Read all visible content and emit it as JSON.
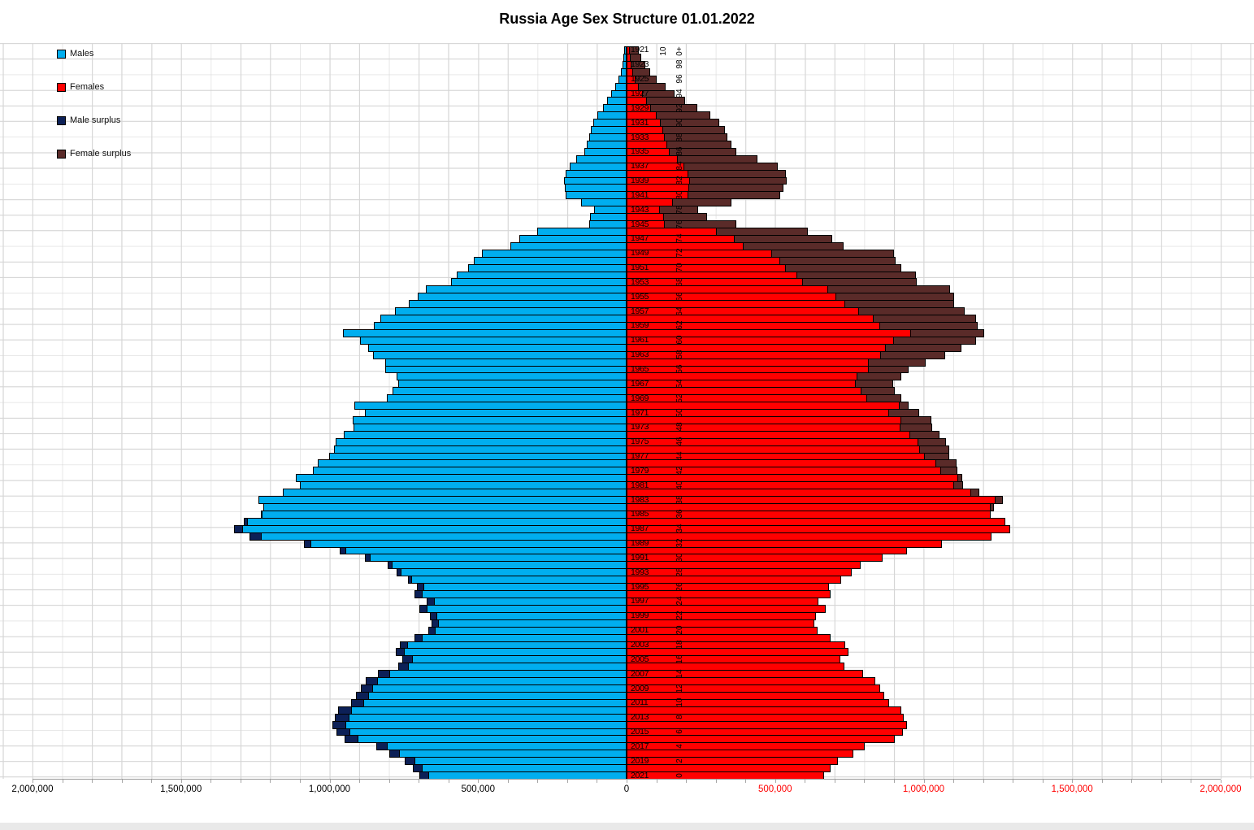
{
  "title": "Russia Age Sex Structure 01.01.2022",
  "legend": {
    "items": [
      {
        "key": "males",
        "label": "Males",
        "color": "#00AEEF"
      },
      {
        "key": "females",
        "label": "Females",
        "color": "#FF0000"
      },
      {
        "key": "male-surplus",
        "label": "Male surplus",
        "color": "#0C2057"
      },
      {
        "key": "female-surplus",
        "label": "Female surplus",
        "color": "#5A2B29"
      }
    ]
  },
  "axis": {
    "zero_label": "0",
    "left_tick_labels": [
      "2,000,000",
      "1,500,000",
      "1,000,000",
      "500,000"
    ],
    "right_tick_labels": [
      "500,000",
      "1,000,000",
      "1,500,000",
      "2,000,000"
    ],
    "left_label_color": "#000000",
    "right_label_color": "#FF0000",
    "max_value": 2000000,
    "major_tick_interval": 500000,
    "minor_gridline_interval": 100000
  },
  "center_labels": {
    "year_top": 1921,
    "year_bottom": 2021,
    "year_step_shown": 2,
    "top_age_label": "100+",
    "top_age_label_wrap": [
      "10",
      "0+"
    ],
    "bottom_age_label": "0",
    "age_step_shown": 2
  },
  "chart_data": {
    "type": "bar",
    "subtype": "population-pyramid",
    "title": "Russia Age Sex Structure 01.01.2022",
    "orientation": "horizontal",
    "x_axis": {
      "range": [
        -2000000,
        2000000
      ],
      "tick_interval": 500000,
      "gridlines": true
    },
    "note": "Left side = males (birth-year rows, age = 2021 - year). Bar colors: matched portion blue/red; male surplus = max(0, males-females) in dark navy at left tip; female surplus = max(0, females-males) in dark maroon at right tip. Values are persons, estimated from chart.",
    "years": [
      1921,
      1922,
      1923,
      1924,
      1925,
      1926,
      1927,
      1928,
      1929,
      1930,
      1931,
      1932,
      1933,
      1934,
      1935,
      1936,
      1937,
      1938,
      1939,
      1940,
      1941,
      1942,
      1943,
      1944,
      1945,
      1946,
      1947,
      1948,
      1949,
      1950,
      1951,
      1952,
      1953,
      1954,
      1955,
      1956,
      1957,
      1958,
      1959,
      1960,
      1961,
      1962,
      1963,
      1964,
      1965,
      1966,
      1967,
      1968,
      1969,
      1970,
      1971,
      1972,
      1973,
      1974,
      1975,
      1976,
      1977,
      1978,
      1979,
      1980,
      1981,
      1982,
      1983,
      1984,
      1985,
      1986,
      1987,
      1988,
      1989,
      1990,
      1991,
      1992,
      1993,
      1994,
      1995,
      1996,
      1997,
      1998,
      1999,
      2000,
      2001,
      2002,
      2003,
      2004,
      2005,
      2006,
      2007,
      2008,
      2009,
      2010,
      2011,
      2012,
      2013,
      2014,
      2015,
      2016,
      2017,
      2018,
      2019,
      2020,
      2021
    ],
    "series": [
      {
        "name": "Males",
        "color": "#00AEEF",
        "values": [
          8000,
          11000,
          14000,
          18000,
          26000,
          37000,
          51000,
          65000,
          79000,
          99000,
          111000,
          121000,
          126000,
          133000,
          141000,
          170000,
          192000,
          206000,
          212000,
          209000,
          206000,
          152000,
          110000,
          124000,
          126000,
          300000,
          360000,
          390000,
          488000,
          514000,
          534000,
          572000,
          591000,
          676000,
          704000,
          732000,
          780000,
          828000,
          852000,
          954000,
          897000,
          870000,
          853000,
          813000,
          812000,
          774000,
          769000,
          788000,
          807000,
          917000,
          881000,
          922000,
          919000,
          952000,
          979000,
          985000,
          1001000,
          1040000,
          1056000,
          1113000,
          1100000,
          1157000,
          1239000,
          1223000,
          1232000,
          1290000,
          1322000,
          1270000,
          1085000,
          965000,
          880000,
          805000,
          773000,
          737000,
          707000,
          713000,
          672000,
          697000,
          662000,
          657000,
          668000,
          713000,
          764000,
          777000,
          756000,
          770000,
          837000,
          879000,
          896000,
          911000,
          928000,
          970000,
          981000,
          991000,
          977000,
          949000,
          843000,
          800000,
          747000,
          720000,
          699000
        ]
      },
      {
        "name": "Females",
        "color": "#FF0000",
        "values": [
          40000,
          50000,
          62000,
          80000,
          102000,
          130000,
          162000,
          198000,
          238000,
          282000,
          312000,
          330000,
          340000,
          352000,
          370000,
          440000,
          508000,
          535000,
          540000,
          528000,
          518000,
          352000,
          240000,
          272000,
          370000,
          610000,
          692000,
          730000,
          900000,
          905000,
          925000,
          975000,
          977000,
          1088000,
          1102000,
          1103000,
          1138000,
          1176000,
          1182000,
          1204000,
          1176000,
          1127000,
          1073000,
          1007000,
          950000,
          925000,
          898000,
          903000,
          925000,
          949000,
          985000,
          1026000,
          1029000,
          1053000,
          1075000,
          1086000,
          1086000,
          1111000,
          1113000,
          1130000,
          1133000,
          1187000,
          1267000,
          1237000,
          1225000,
          1275000,
          1292000,
          1228000,
          1062000,
          945000,
          862000,
          788000,
          758000,
          722000,
          680000,
          686000,
          646000,
          670000,
          637000,
          632000,
          642000,
          686000,
          735000,
          747000,
          720000,
          733000,
          797000,
          837000,
          853000,
          868000,
          884000,
          924000,
          934000,
          944000,
          930000,
          904000,
          803000,
          762000,
          711000,
          686000,
          666000
        ]
      },
      {
        "name": "Male surplus",
        "color": "#0C2057",
        "definition": "max(0, males - females)"
      },
      {
        "name": "Female surplus",
        "color": "#5A2B29",
        "definition": "max(0, females - males)"
      }
    ]
  }
}
